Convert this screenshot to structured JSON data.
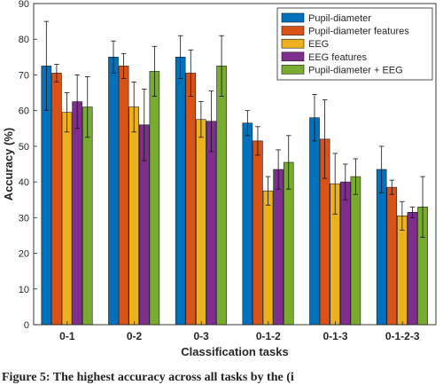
{
  "chart_data": {
    "type": "bar",
    "title": "",
    "xlabel": "Classification tasks",
    "ylabel": "Accuracy (%)",
    "ylim": [
      0,
      90
    ],
    "yticks": [
      0,
      10,
      20,
      30,
      40,
      50,
      60,
      70,
      80,
      90
    ],
    "grid": false,
    "legend_position": "top-right",
    "categories": [
      "0-1",
      "0-2",
      "0-3",
      "0-1-2",
      "0-1-3",
      "0-1-2-3"
    ],
    "series": [
      {
        "name": "Pupil-diameter",
        "color": "#0072BD",
        "values": [
          72.5,
          75.0,
          75.0,
          56.5,
          58.0,
          43.5
        ],
        "errors": [
          12.5,
          4.5,
          6.0,
          3.5,
          6.5,
          6.5
        ]
      },
      {
        "name": "Pupil-diameter features",
        "color": "#D95319",
        "values": [
          70.5,
          72.5,
          70.5,
          51.5,
          52.0,
          38.5
        ],
        "errors": [
          2.5,
          3.5,
          6.5,
          4.0,
          11.0,
          2.0
        ]
      },
      {
        "name": "EEG",
        "color": "#EDB120",
        "values": [
          59.5,
          61.0,
          57.5,
          37.5,
          39.5,
          30.5
        ],
        "errors": [
          5.5,
          7.0,
          5.0,
          4.0,
          8.5,
          4.0
        ]
      },
      {
        "name": "EEG features",
        "color": "#7E2F8E",
        "values": [
          62.5,
          56.0,
          57.0,
          43.5,
          40.0,
          31.5
        ],
        "errors": [
          7.5,
          10.0,
          8.5,
          5.5,
          5.0,
          1.5
        ]
      },
      {
        "name": "Pupil-diameter + EEG",
        "color": "#77AC30",
        "values": [
          61.0,
          71.0,
          72.5,
          45.5,
          41.5,
          33.0
        ],
        "errors": [
          8.5,
          7.0,
          8.5,
          7.5,
          5.0,
          8.5
        ]
      }
    ]
  },
  "caption": "Figure 5: The highest accuracy across all tasks by the (i"
}
